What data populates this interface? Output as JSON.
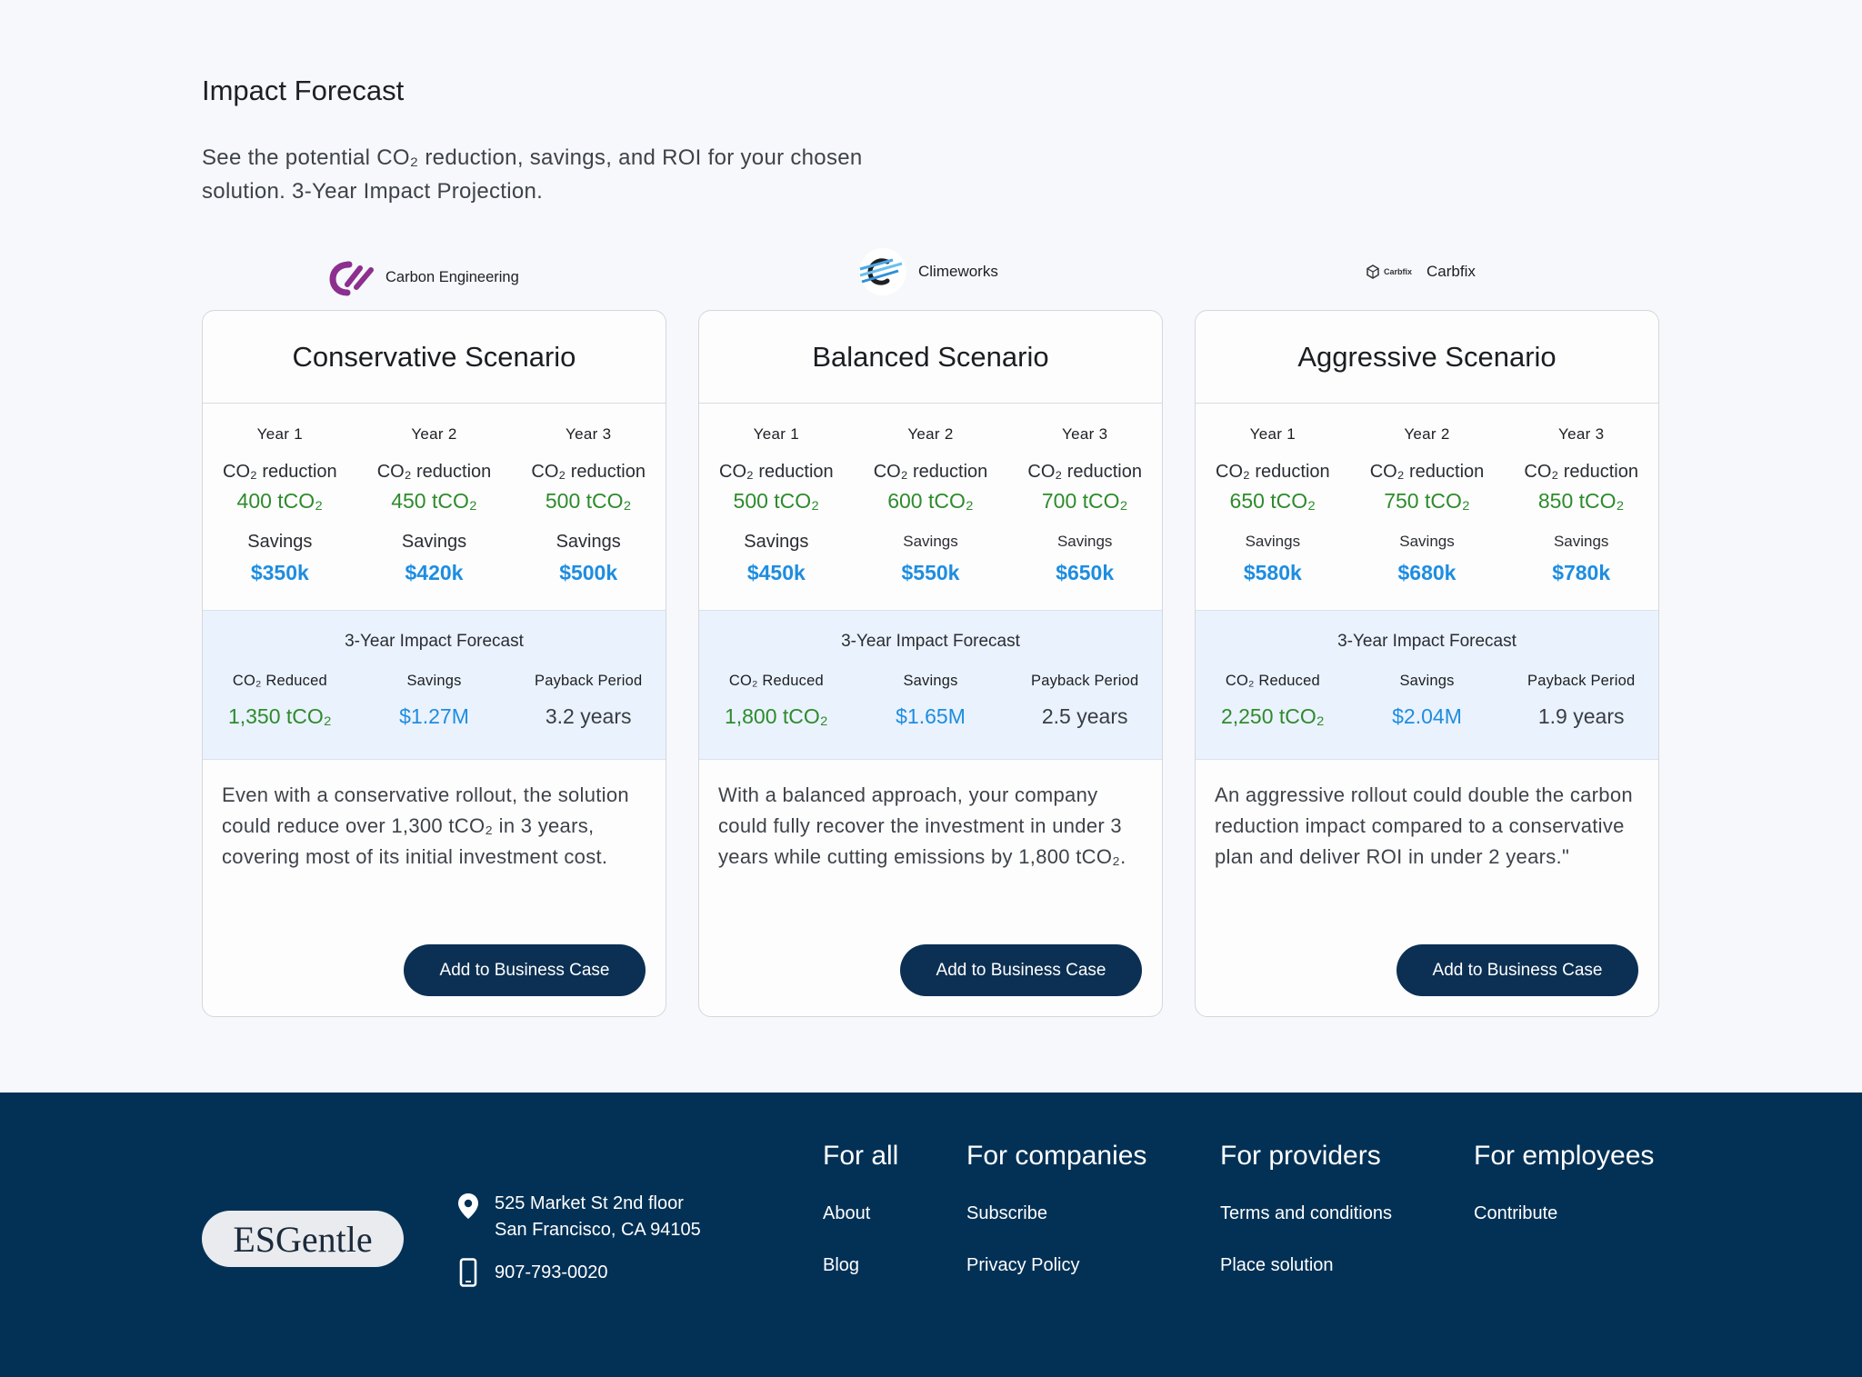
{
  "header": {
    "title": "Impact Forecast",
    "intro": "See the potential CO₂ reduction, savings, and ROI for your chosen solution. 3-Year Impact Projection."
  },
  "providers": [
    {
      "name": "Carbon Engineering",
      "icon": "carbon-engineering-logo",
      "color": "#8c2f8f"
    },
    {
      "name": "Climeworks",
      "icon": "climeworks-logo",
      "color": "#4aa8e8"
    },
    {
      "name": "Carbfix",
      "icon": "carbfix-logo",
      "logo_text": "Carbfix",
      "color": "#333333"
    }
  ],
  "labels": {
    "co2_reduction": "CO₂ reduction",
    "savings": "Savings",
    "forecast_title": "3-Year Impact Forecast",
    "co2_reduced": "CO₂ Reduced",
    "payback_period": "Payback Period",
    "button": "Add to Business Case"
  },
  "scenarios": [
    {
      "title": "Conservative Scenario",
      "years": [
        {
          "label": "Year 1",
          "co2": "400 tCO₂",
          "savings": "$350k"
        },
        {
          "label": "Year 2",
          "co2": "450 tCO₂",
          "savings": "$420k"
        },
        {
          "label": "Year 3",
          "co2": "500 tCO₂",
          "savings": "$500k"
        }
      ],
      "forecast": {
        "co2": "1,350 tCO₂",
        "savings": "$1.27M",
        "payback": "3.2 years"
      },
      "description": "Even with a conservative rollout, the solution could reduce over 1,300 tCO₂ in 3 years, covering most of its initial investment cost."
    },
    {
      "title": "Balanced Scenario",
      "years": [
        {
          "label": "Year 1",
          "co2": "500 tCO₂",
          "savings": "$450k"
        },
        {
          "label": "Year 2",
          "co2": "600 tCO₂",
          "savings": "$550k"
        },
        {
          "label": "Year 3",
          "co2": "700 tCO₂",
          "savings": "$650k"
        }
      ],
      "forecast": {
        "co2": "1,800 tCO₂",
        "savings": "$1.65M",
        "payback": "2.5 years"
      },
      "description": "With a balanced approach, your company could fully recover the investment in under 3 years while cutting emissions by 1,800 tCO₂."
    },
    {
      "title": "Aggressive Scenario",
      "years": [
        {
          "label": "Year 1",
          "co2": "650 tCO₂",
          "savings": "$580k"
        },
        {
          "label": "Year 2",
          "co2": "750 tCO₂",
          "savings": "$680k"
        },
        {
          "label": "Year 3",
          "co2": "850 tCO₂",
          "savings": "$780k"
        }
      ],
      "forecast": {
        "co2": "2,250 tCO₂",
        "savings": "$2.04M",
        "payback": "1.9 years"
      },
      "description": "An aggressive rollout could double the carbon reduction impact compared to a conservative plan and deliver ROI in under 2 years.\""
    }
  ],
  "footer": {
    "logo": "ESGentle",
    "address_line1": "525 Market St 2nd floor",
    "address_line2": "San Francisco, CA 94105",
    "phone": "907-793-0020",
    "columns": [
      {
        "title": "For all",
        "links": [
          "About",
          "Blog"
        ]
      },
      {
        "title": "For companies",
        "links": [
          "Subscribe",
          "Privacy Policy"
        ]
      },
      {
        "title": "For providers",
        "links": [
          "Terms and conditions",
          "Place solution"
        ]
      },
      {
        "title": "For employees",
        "links": [
          "Contribute"
        ]
      }
    ],
    "bg_color": "#033156"
  }
}
